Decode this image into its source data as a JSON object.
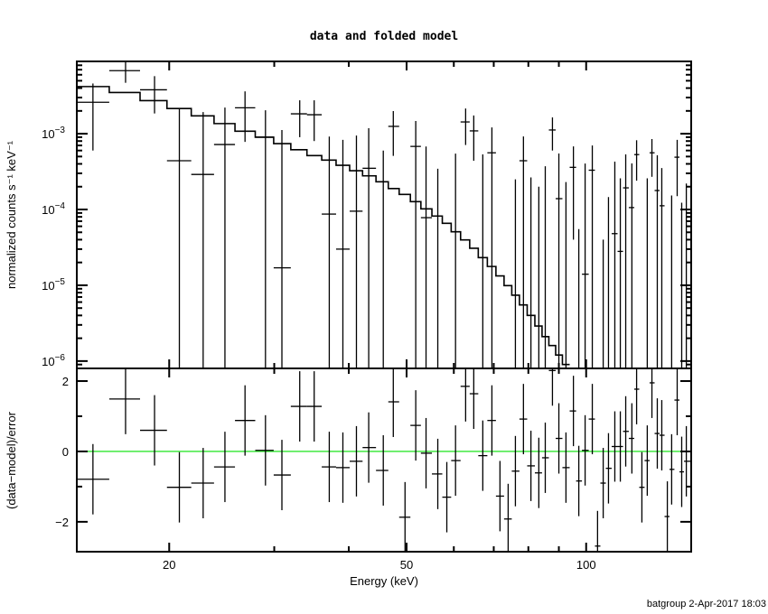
{
  "chart_data": [
    {
      "type": "scatter",
      "title": "data and folded model",
      "xlabel": "",
      "ylabel": "normalized counts s⁻¹ keV⁻¹",
      "xscale": "log",
      "yscale": "log",
      "xlim": [
        14,
        150
      ],
      "ylim": [
        8e-07,
        0.009
      ],
      "grid": false,
      "x_ticks_major": [
        20,
        50,
        100
      ],
      "x_ticks_minor": [
        30,
        40,
        60,
        70,
        80,
        90
      ],
      "y_tick_labels": [
        {
          "value": 0.001,
          "base": "10",
          "exp": "−3"
        },
        {
          "value": 0.0001,
          "base": "10",
          "exp": "−4"
        },
        {
          "value": 1e-05,
          "base": "10",
          "exp": "−5"
        },
        {
          "value": 1e-06,
          "base": "10",
          "exp": "−6"
        }
      ],
      "energy_keV": [
        14.9,
        16.9,
        18.9,
        20.8,
        22.8,
        24.8,
        26.8,
        29.0,
        30.9,
        33.1,
        35.0,
        37.1,
        39.1,
        41.2,
        43.2,
        45.7,
        47.5,
        49.7,
        51.8,
        53.9,
        56.4,
        58.4,
        60.4,
        62.8,
        64.8,
        67.1,
        69.5,
        71.7,
        74.0,
        76.1,
        78.5,
        80.8,
        83.3,
        85.4,
        87.8,
        90.0,
        92.5,
        95.2,
        97.2,
        99.6,
        102.4,
        104.5,
        106.8,
        109.0,
        111.7,
        114.1,
        116.5,
        119.3,
        121.5,
        124.0,
        126.6,
        128.9,
        131.6,
        133.9,
        136.8,
        139.1,
        142.1,
        144.6,
        147.2
      ],
      "data_rate": [
        0.0026,
        0.0068,
        0.0038,
        0.00044,
        0.00029,
        0.00072,
        0.0022,
        0.0009,
        1.7e-05,
        0.00183,
        0.00178,
        8.7e-05,
        3e-05,
        9.5e-05,
        0.00035,
        -0.00019,
        0.00125,
        -0.00116,
        0.00068,
        7.8e-05,
        -0.00033,
        -0.0008,
        -8.4e-05,
        0.00143,
        0.00109,
        -2.7e-05,
        0.00056,
        -0.0007,
        -0.0011,
        -0.00029,
        0.00044,
        -0.000175,
        -0.00031,
        -7.8e-05,
        0.00112,
        0.000139,
        -0.00019,
        0.00036,
        -0.00027,
        1.4e-05,
        0.00033,
        -0.00094,
        -0.00033,
        -0.000134,
        4.8e-05,
        2.8e-05,
        0.000193,
        0.000106,
        0.00053,
        -0.0003,
        -9.2e-05,
        0.00056,
        0.000178,
        0.000112,
        -0.0005,
        -0.000157,
        0.00049,
        -0.000167,
        -8e-05
      ],
      "data_error": [
        0.002,
        0.0021,
        0.00195,
        0.00166,
        0.00164,
        0.00149,
        0.00142,
        0.00114,
        0.0011,
        0.00093,
        0.00098,
        0.00083,
        0.0008,
        0.00085,
        0.00083,
        0.00079,
        0.00074,
        0.0007,
        0.00079,
        0.0006,
        0.000675,
        0.00065,
        0.00063,
        0.00072,
        0.00065,
        0.00056,
        0.00065,
        0.00057,
        0.00058,
        0.00054,
        0.00048,
        0.00044,
        0.00051,
        0.00045,
        0.00052,
        0.00041,
        0.00042,
        0.00032,
        0.000325,
        0.00039,
        0.00037,
        0.00035,
        0.00037,
        0.00028,
        0.00038,
        0.00023,
        0.00034,
        0.0003,
        0.00029,
        0.00029,
        0.00035,
        0.00029,
        0.00034,
        0.00024,
        0.00027,
        0.00031,
        0.00034,
        0.00029,
        0.0003
      ],
      "model_rate": [
        0.00419,
        0.0035,
        0.00273,
        0.00215,
        0.00172,
        0.00136,
        0.00108,
        0.0009,
        0.00074,
        0.000615,
        0.000514,
        0.000448,
        0.000383,
        0.000325,
        0.000278,
        0.000232,
        0.000189,
        0.000158,
        0.000127,
        0.000102,
        8.2e-05,
        6.58e-05,
        5.08e-05,
        3.97e-05,
        3.08e-05,
        2.32e-05,
        1.77e-05,
        1.33e-05,
        9.9e-06,
        7.4e-06,
        5.5e-06,
        4e-06,
        2.9e-06,
        2.1e-06,
        1.6e-06,
        1.2e-06,
        9e-07
      ]
    },
    {
      "type": "scatter",
      "xlabel": "Energy (keV)",
      "ylabel": "(data−model)/error",
      "xscale": "log",
      "xlim": [
        14,
        150
      ],
      "ylim": [
        -2.85,
        2.36
      ],
      "x_tick_labels": [
        {
          "value": 20,
          "text": "20"
        },
        {
          "value": 50,
          "text": "50"
        },
        {
          "value": 100,
          "text": "100"
        }
      ],
      "y_tick_labels": [
        {
          "value": 2,
          "text": "2"
        },
        {
          "value": 0,
          "text": "0"
        },
        {
          "value": -2,
          "text": "−2"
        }
      ],
      "y_ticks_minor": [
        1,
        -1
      ],
      "reference_line": 0,
      "reference_color": "#00e000",
      "residual": [
        -0.79,
        1.49,
        0.6,
        -1.02,
        -0.9,
        -0.44,
        0.88,
        0.03,
        -0.67,
        1.28,
        1.28,
        -0.44,
        -0.46,
        -0.28,
        0.11,
        -0.54,
        1.41,
        -1.87,
        0.74,
        -0.05,
        -0.64,
        -1.3,
        -0.26,
        1.85,
        1.64,
        -0.12,
        0.88,
        -1.27,
        -1.92,
        -0.56,
        0.92,
        -0.41,
        -0.61,
        -0.18,
        2.3,
        0.37,
        -0.46,
        1.15,
        -0.84,
        0.03,
        0.92,
        -2.69,
        -0.9,
        -0.48,
        0.14,
        0.14,
        0.57,
        0.37,
        1.77,
        -1.02,
        -0.26,
        1.95,
        0.51,
        0.46,
        -1.85,
        -0.51,
        1.46,
        -0.58,
        -0.28
      ],
      "residual_error": 1
    }
  ],
  "footer": "batgroup  2-Apr-2017 18:03"
}
